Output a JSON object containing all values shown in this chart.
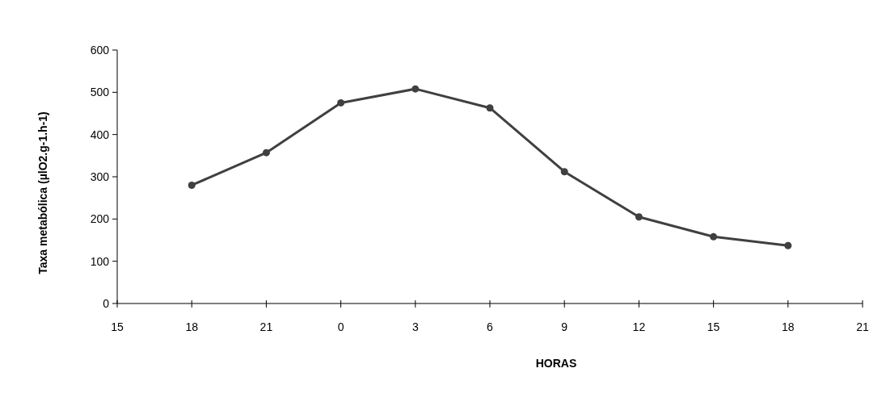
{
  "chart_data": {
    "type": "line",
    "xlabel": "HORAS",
    "ylabel": "Taxa metabólica (µlO2.g-1.h-1)",
    "categories": [
      "15",
      "18",
      "21",
      "0",
      "3",
      "6",
      "9",
      "12",
      "15",
      "18",
      "21"
    ],
    "series": [
      {
        "color": "#404040",
        "values": [
          null,
          280,
          357,
          475,
          508,
          463,
          312,
          205,
          158,
          137,
          null
        ]
      }
    ],
    "ylim": [
      0,
      600
    ],
    "yticks": [
      0,
      100,
      200,
      300,
      400,
      500,
      600
    ],
    "marker": "circle",
    "line_style": "solid"
  }
}
